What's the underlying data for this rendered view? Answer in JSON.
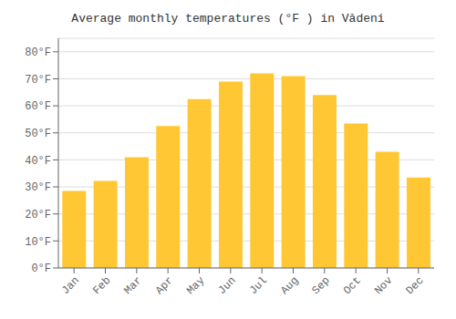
{
  "chart_data": {
    "type": "bar",
    "title": "Average monthly temperatures (°F ) in Vădeni",
    "categories": [
      "Jan",
      "Feb",
      "Mar",
      "Apr",
      "May",
      "Jun",
      "Jul",
      "Aug",
      "Sep",
      "Oct",
      "Nov",
      "Dec"
    ],
    "values": [
      28.5,
      32.2,
      41.0,
      52.5,
      62.5,
      69.0,
      72.0,
      71.0,
      64.0,
      53.5,
      43.0,
      33.5
    ],
    "color": "#FFC733",
    "ylim": [
      0,
      85
    ],
    "yticks": [
      {
        "value": 0,
        "label": "0°F"
      },
      {
        "value": 10,
        "label": "10°F"
      },
      {
        "value": 20,
        "label": "20°F"
      },
      {
        "value": 30,
        "label": "30°F"
      },
      {
        "value": 40,
        "label": "40°F"
      },
      {
        "value": 50,
        "label": "50°F"
      },
      {
        "value": 60,
        "label": "60°F"
      },
      {
        "value": 70,
        "label": "70°F"
      },
      {
        "value": 80,
        "label": "80°F"
      }
    ],
    "grid": true
  }
}
